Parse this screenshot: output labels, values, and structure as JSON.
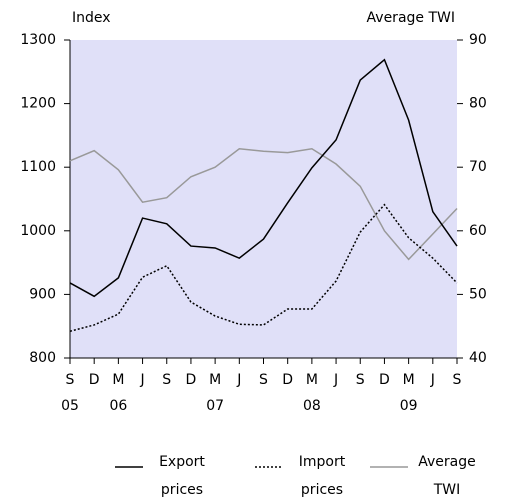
{
  "chart_data": {
    "type": "line",
    "y_label": "Index",
    "y2_label": "Average TWI",
    "categories": [
      "S",
      "D",
      "M",
      "J",
      "S",
      "D",
      "M",
      "J",
      "S",
      "D",
      "M",
      "J",
      "S",
      "D",
      "M",
      "J",
      "S"
    ],
    "category_years": [
      "05",
      null,
      "06",
      null,
      null,
      null,
      "07",
      null,
      null,
      null,
      "08",
      null,
      null,
      null,
      "09",
      null,
      null
    ],
    "ylim": [
      800,
      1300
    ],
    "yticks": [
      800,
      900,
      1000,
      1100,
      1200,
      1300
    ],
    "y2lim": [
      40,
      90
    ],
    "y2ticks": [
      40,
      50,
      60,
      70,
      80,
      90
    ],
    "background": "#e0e0f8",
    "series": [
      {
        "name": "Export prices",
        "color": "#000000",
        "dash": "solid",
        "values": [
          918,
          897,
          926,
          1020,
          1011,
          976,
          973,
          957,
          987,
          1044,
          1099,
          1143,
          1237,
          1269,
          1174,
          1030,
          976
        ]
      },
      {
        "name": "Import prices",
        "color": "#000000",
        "dash": "dotted",
        "values": [
          842,
          852,
          869,
          927,
          945,
          888,
          866,
          853,
          852,
          877,
          877,
          921,
          998,
          1041,
          989,
          957,
          918
        ]
      },
      {
        "name": "Average TWI",
        "color": "#999999",
        "dash": "solid",
        "axis": "y2",
        "values": [
          71,
          72.6,
          69.6,
          64.5,
          65.2,
          68.5,
          70,
          72.9,
          72.5,
          72.3,
          72.9,
          70.5,
          67,
          60,
          55.5,
          59.5,
          63.5
        ]
      }
    ]
  }
}
